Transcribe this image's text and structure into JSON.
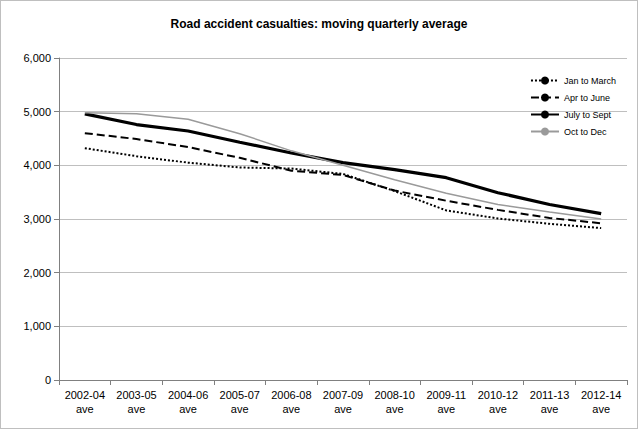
{
  "chart_data": {
    "type": "line",
    "title": "Road accident casualties: moving quarterly average",
    "categories": [
      "2002-04 ave",
      "2003-05 ave",
      "2004-06 ave",
      "2005-07 ave",
      "2006-08 ave",
      "2007-09 ave",
      "2008-10 ave",
      "2009-11 ave",
      "2010-12 ave",
      "2011-13 ave",
      "2012-14 ave"
    ],
    "series": [
      {
        "name": "Jan to March",
        "color": "#000000",
        "line_style": "dotted",
        "values": [
          4320,
          4170,
          4050,
          3960,
          3940,
          3840,
          3520,
          3160,
          3010,
          2910,
          2830
        ]
      },
      {
        "name": "Apr to June",
        "color": "#000000",
        "line_style": "dashed",
        "values": [
          4600,
          4490,
          4340,
          4140,
          3900,
          3820,
          3530,
          3340,
          3170,
          3020,
          2920
        ]
      },
      {
        "name": "July to Sept",
        "color": "#000000",
        "line_style": "solid",
        "values": [
          4960,
          4760,
          4640,
          4430,
          4230,
          4050,
          3920,
          3770,
          3490,
          3270,
          3100
        ]
      },
      {
        "name": "Oct to Dec",
        "color": "#9a9a9a",
        "line_style": "solid",
        "values": [
          4980,
          4960,
          4860,
          4590,
          4270,
          4000,
          3730,
          3480,
          3270,
          3130,
          3000
        ]
      }
    ],
    "ylim": [
      0,
      6000
    ],
    "yticks": [
      0,
      1000,
      2000,
      3000,
      4000,
      5000,
      6000
    ],
    "grid": true,
    "legend": "top-right"
  }
}
